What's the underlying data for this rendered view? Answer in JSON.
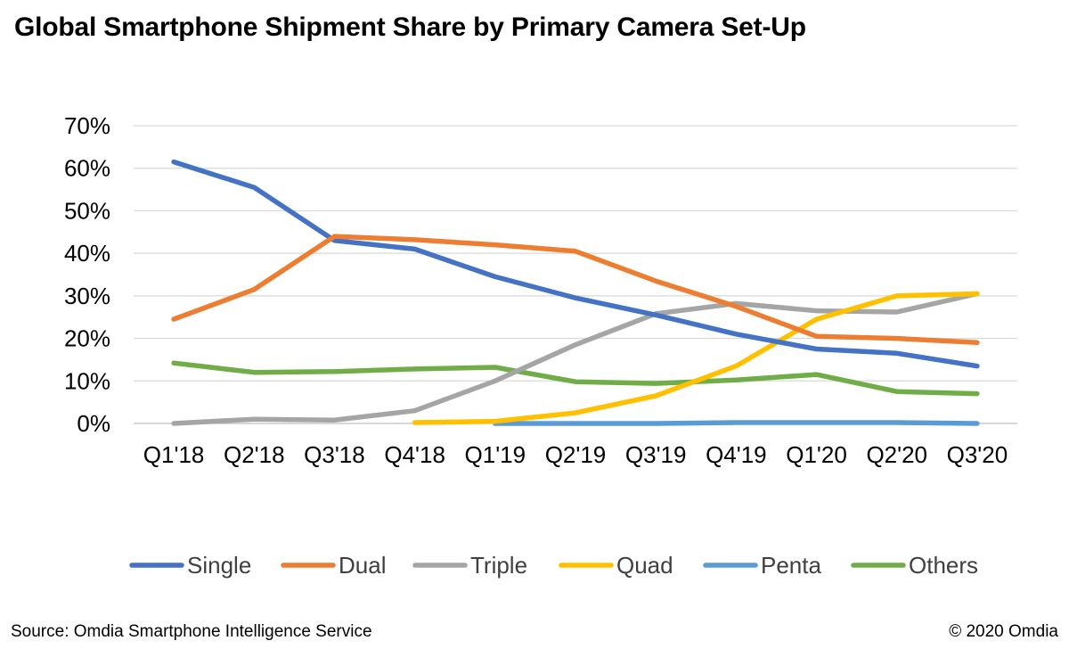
{
  "title": "Global Smartphone Shipment Share by Primary Camera Set-Up",
  "source": "Source: Omdia Smartphone Intelligence Service",
  "copyright": "© 2020 Omdia",
  "chart_data": {
    "type": "line",
    "categories": [
      "Q1'18",
      "Q2'18",
      "Q3'18",
      "Q4'18",
      "Q1'19",
      "Q2'19",
      "Q3'19",
      "Q4'19",
      "Q1'20",
      "Q2'20",
      "Q3'20"
    ],
    "ylim": [
      0,
      70
    ],
    "yticks": [
      "0%",
      "10%",
      "20%",
      "30%",
      "40%",
      "50%",
      "60%",
      "70%"
    ],
    "grid": true,
    "legend_position": "bottom",
    "series": [
      {
        "name": "Single",
        "color": "#4472C4",
        "values": [
          61.5,
          55.5,
          43,
          41,
          34.5,
          29.5,
          25.5,
          21,
          17.5,
          16.5,
          13.5
        ]
      },
      {
        "name": "Dual",
        "color": "#ED7D31",
        "values": [
          24.5,
          31.5,
          44,
          43.2,
          42,
          40.5,
          33.5,
          27.5,
          20.5,
          20,
          19
        ]
      },
      {
        "name": "Triple",
        "color": "#A5A5A5",
        "values": [
          0,
          1,
          0.8,
          3,
          10,
          18.5,
          25.8,
          28.2,
          26.5,
          26.2,
          30.5
        ]
      },
      {
        "name": "Quad",
        "color": "#FFC000",
        "values": [
          null,
          null,
          null,
          0.2,
          0.5,
          2.5,
          6.5,
          13.5,
          24.5,
          30,
          30.5
        ]
      },
      {
        "name": "Penta",
        "color": "#5B9BD5",
        "values": [
          null,
          null,
          null,
          null,
          0,
          0,
          0,
          0.2,
          0.2,
          0.2,
          0
        ]
      },
      {
        "name": "Others",
        "color": "#70AD47",
        "values": [
          14.2,
          12,
          12.2,
          12.8,
          13.2,
          9.8,
          9.4,
          10.2,
          11.5,
          7.5,
          7
        ]
      }
    ]
  }
}
